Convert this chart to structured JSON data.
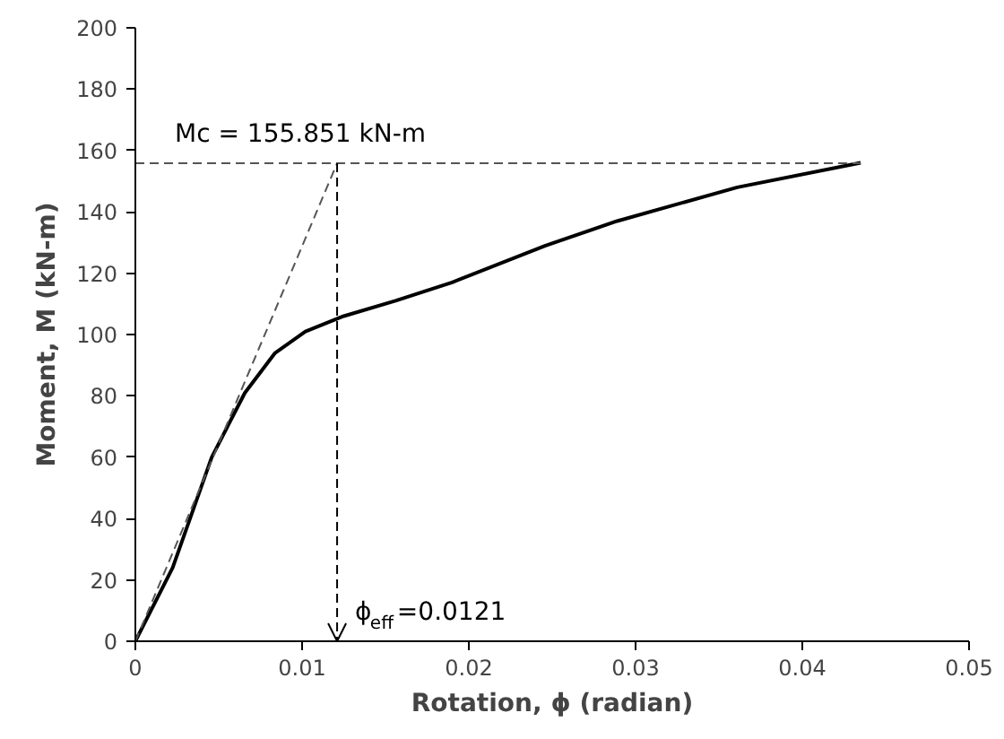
{
  "chart_data": {
    "type": "line",
    "xlabel": "Rotation, ϕ (radian)",
    "ylabel": "Moment, M (kN-m)",
    "xlim": [
      0,
      0.05
    ],
    "ylim": [
      0,
      200
    ],
    "xticks": [
      0,
      0.01,
      0.02,
      0.03,
      0.04,
      0.05
    ],
    "yticks": [
      0,
      20,
      40,
      60,
      80,
      100,
      120,
      140,
      160,
      180,
      200
    ],
    "grid": false,
    "series": [
      {
        "color": "#000000",
        "line_style": "solid",
        "x": [
          0,
          0.00224,
          0.00458,
          0.00657,
          0.00838,
          0.0102,
          0.0125,
          0.0156,
          0.019,
          0.0246,
          0.0289,
          0.0361,
          0.0435
        ],
        "values": [
          0,
          24,
          60,
          81,
          94,
          101,
          106,
          111,
          117,
          129,
          137,
          148,
          156
        ]
      },
      {
        "color": "#555555",
        "line_style": "dashed",
        "x": [
          0,
          0.0121
        ],
        "values": [
          0,
          155.851
        ]
      }
    ],
    "ref_lines": [
      {
        "axis": "y",
        "value": 155.851,
        "label": "Mc = 155.851 kN-m",
        "color": "#555555",
        "line_style": "dashed"
      },
      {
        "axis": "x",
        "value": 0.0121,
        "label": "ϕ$_{eff}$=0.0121",
        "color": "#000000",
        "line_style": "dashed"
      }
    ]
  }
}
